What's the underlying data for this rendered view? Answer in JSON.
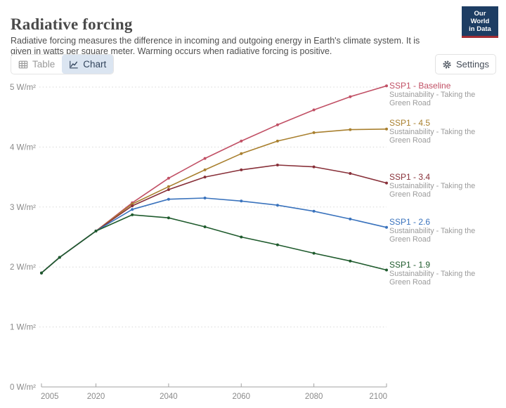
{
  "header": {
    "title": "Radiative forcing",
    "subtitle": "Radiative forcing measures the difference in incoming and outgoing energy in Earth's climate system. It is given in watts per square meter. Warming occurs when radiative forcing is positive.",
    "logo": {
      "line1": "Our World",
      "line2": "in Data",
      "bg": "#1d3d63",
      "accent": "#a22d34"
    }
  },
  "toolbar": {
    "tabs": [
      {
        "label": "Table",
        "icon": "table-icon",
        "active": false
      },
      {
        "label": "Chart",
        "icon": "chart-icon",
        "active": true
      }
    ],
    "settings_label": "Settings",
    "settings_icon": "gear-icon"
  },
  "chart_data": {
    "type": "line",
    "title": "Radiative forcing",
    "unit": "W/m²",
    "x": [
      2005,
      2010,
      2020,
      2030,
      2040,
      2050,
      2060,
      2070,
      2080,
      2090,
      2100
    ],
    "xlim": [
      2005,
      2100
    ],
    "ylim": [
      0,
      5
    ],
    "yticks": [
      0,
      1,
      2,
      3,
      4,
      5
    ],
    "xticks": [
      2005,
      2020,
      2040,
      2060,
      2080,
      2100
    ],
    "grid": "horizontal-dotted",
    "legend_position": "right",
    "axis_color": "#a3a3a3",
    "grid_color": "#d8d8d8",
    "tick_label_color": "#8a8a8a",
    "series": [
      {
        "name": "SSP1 - Baseline",
        "subtitle": "Sustainability - Taking the Green Road",
        "color": "#C15065",
        "values": [
          1.9,
          2.16,
          2.6,
          3.07,
          3.48,
          3.81,
          4.1,
          4.37,
          4.62,
          4.84,
          5.02
        ]
      },
      {
        "name": "SSP1 - 4.5",
        "subtitle": "Sustainability - Taking the Green Road",
        "color": "#A9802F",
        "values": [
          1.9,
          2.16,
          2.6,
          3.05,
          3.34,
          3.62,
          3.89,
          4.1,
          4.24,
          4.29,
          4.3
        ]
      },
      {
        "name": "SSP1 - 3.4",
        "subtitle": "Sustainability - Taking the Green Road",
        "color": "#883039",
        "values": [
          1.9,
          2.16,
          2.6,
          3.02,
          3.29,
          3.5,
          3.62,
          3.7,
          3.67,
          3.56,
          3.4
        ]
      },
      {
        "name": "SSP1 - 2.6",
        "subtitle": "Sustainability - Taking the Green Road",
        "color": "#3A73BD",
        "values": [
          1.9,
          2.16,
          2.6,
          2.96,
          3.13,
          3.15,
          3.1,
          3.03,
          2.93,
          2.8,
          2.66
        ]
      },
      {
        "name": "SSP1 - 1.9",
        "subtitle": "Sustainability - Taking the Green Road",
        "color": "#1F5B2D",
        "values": [
          1.9,
          2.16,
          2.6,
          2.87,
          2.82,
          2.67,
          2.5,
          2.37,
          2.23,
          2.1,
          1.95
        ]
      }
    ]
  }
}
